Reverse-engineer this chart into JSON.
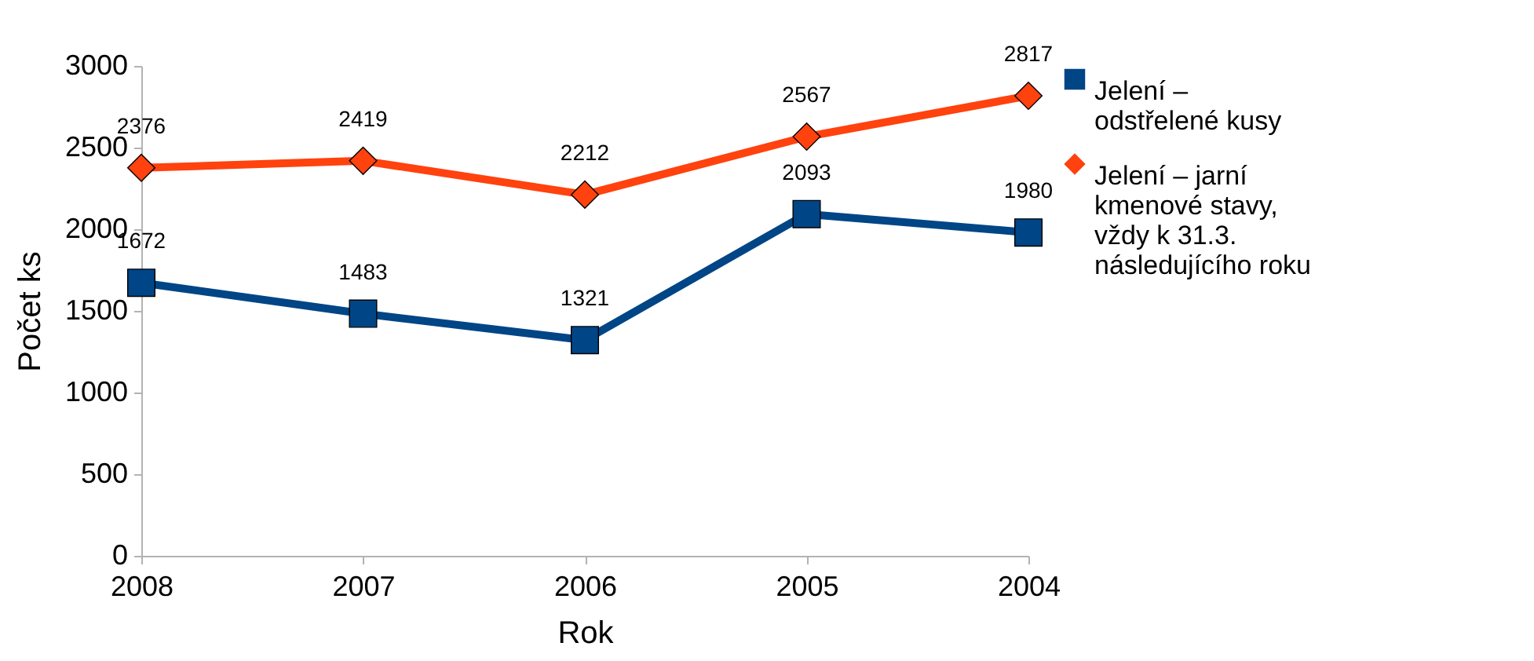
{
  "chart_data": {
    "type": "line",
    "xlabel": "Rok",
    "ylabel": "Počet ks",
    "categories": [
      "2008",
      "2007",
      "2006",
      "2005",
      "2004"
    ],
    "series": [
      {
        "name": "Jelení – odstřelené kusy",
        "color": "#004586",
        "marker": "square",
        "values": [
          1672,
          1483,
          1321,
          2093,
          1980
        ]
      },
      {
        "name": "Jelení – jarní kmenové stavy, vždy k 31.3. následujícího roku",
        "color": "#ff420e",
        "marker": "diamond",
        "values": [
          2376,
          2419,
          2212,
          2567,
          2817
        ]
      }
    ],
    "ylim": [
      0,
      3000
    ],
    "yticks": [
      0,
      500,
      1000,
      1500,
      2000,
      2500,
      3000
    ],
    "grid": false,
    "legend": "right",
    "data_labels": true
  }
}
